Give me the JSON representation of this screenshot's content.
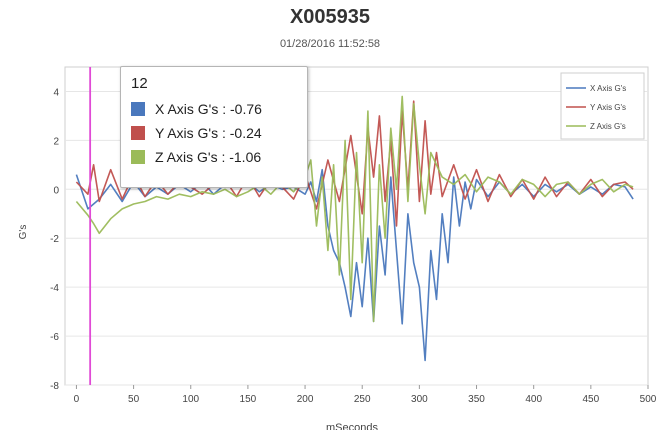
{
  "chart_data": {
    "type": "line",
    "title": "X005935",
    "subtitle": "01/28/2016 11:52:58",
    "xlabel": "mSeconds",
    "ylabel": "G's",
    "xlim": [
      -10,
      500
    ],
    "ylim": [
      -8,
      5
    ],
    "x_ticks": [
      0,
      50,
      100,
      150,
      200,
      250,
      300,
      350,
      400,
      450,
      500
    ],
    "y_ticks": [
      -8,
      -6,
      -4,
      -2,
      0,
      2,
      4
    ],
    "grid": true,
    "legend_position": "top-right",
    "series": [
      {
        "name": "X Axis G's",
        "color": "#4a78bd",
        "x": [
          0,
          10,
          20,
          30,
          40,
          50,
          60,
          70,
          80,
          90,
          100,
          110,
          120,
          130,
          140,
          150,
          160,
          170,
          180,
          190,
          200,
          205,
          210,
          215,
          220,
          225,
          230,
          235,
          240,
          245,
          250,
          255,
          260,
          265,
          270,
          275,
          280,
          285,
          290,
          295,
          300,
          305,
          310,
          315,
          320,
          325,
          330,
          335,
          340,
          345,
          350,
          360,
          370,
          380,
          390,
          400,
          410,
          420,
          430,
          440,
          450,
          460,
          470,
          480,
          487
        ],
        "y": [
          0.6,
          -0.8,
          -0.4,
          0.2,
          -0.5,
          0.3,
          -0.3,
          0.1,
          -0.2,
          0.2,
          -0.1,
          0.3,
          -0.2,
          0.2,
          0.1,
          0.3,
          -0.1,
          0.2,
          0.0,
          0.1,
          -0.2,
          0.3,
          -0.5,
          0.8,
          -1.5,
          -2.5,
          -3.0,
          -4.0,
          -5.2,
          -3.0,
          -4.8,
          -2.0,
          -5.4,
          -1.5,
          -3.5,
          0.5,
          -2.5,
          -5.5,
          -1.0,
          -3.0,
          -4.0,
          -7.0,
          -2.5,
          -4.5,
          -1.0,
          -3.0,
          0.5,
          -1.5,
          0.3,
          -0.8,
          0.4,
          -0.3,
          0.3,
          -0.2,
          0.2,
          -0.3,
          0.2,
          -0.1,
          0.2,
          -0.2,
          0.1,
          -0.2,
          0.2,
          0.1,
          -0.4
        ]
      },
      {
        "name": "Y Axis G's",
        "color": "#c0504d",
        "x": [
          0,
          10,
          15,
          20,
          30,
          40,
          50,
          60,
          70,
          80,
          90,
          100,
          110,
          120,
          130,
          140,
          150,
          160,
          170,
          180,
          190,
          200,
          210,
          220,
          230,
          240,
          250,
          255,
          260,
          265,
          270,
          275,
          280,
          285,
          290,
          295,
          300,
          305,
          310,
          315,
          320,
          330,
          340,
          350,
          360,
          370,
          380,
          390,
          400,
          410,
          420,
          430,
          440,
          450,
          460,
          470,
          480,
          487
        ],
        "y": [
          0.3,
          -0.2,
          1.0,
          -0.5,
          0.8,
          -0.4,
          0.6,
          -0.3,
          0.4,
          -0.2,
          0.3,
          0.1,
          -0.2,
          0.2,
          0.4,
          -0.3,
          0.5,
          -0.3,
          0.4,
          0.1,
          -0.4,
          0.6,
          -0.8,
          1.2,
          -0.5,
          2.2,
          -1.0,
          2.5,
          0.5,
          3.0,
          -0.5,
          2.0,
          -1.5,
          3.2,
          0.0,
          3.6,
          -0.5,
          2.8,
          -0.2,
          1.5,
          -0.3,
          1.0,
          -0.4,
          0.8,
          -0.5,
          0.6,
          -0.3,
          0.4,
          -0.4,
          0.5,
          -0.3,
          0.3,
          -0.2,
          0.4,
          -0.3,
          0.2,
          0.3,
          0.0
        ]
      },
      {
        "name": "Z Axis G's",
        "color": "#9bbb59",
        "x": [
          0,
          10,
          15,
          20,
          30,
          40,
          50,
          60,
          70,
          80,
          90,
          100,
          110,
          120,
          130,
          140,
          150,
          160,
          170,
          180,
          190,
          200,
          205,
          210,
          215,
          220,
          225,
          230,
          235,
          240,
          245,
          250,
          255,
          260,
          265,
          270,
          275,
          280,
          285,
          290,
          295,
          300,
          305,
          310,
          320,
          330,
          340,
          350,
          360,
          370,
          380,
          390,
          400,
          410,
          420,
          430,
          440,
          450,
          460,
          470,
          480,
          487
        ],
        "y": [
          -0.5,
          -1.06,
          -1.4,
          -1.8,
          -1.2,
          -0.8,
          -0.6,
          -0.5,
          -0.3,
          -0.4,
          -0.2,
          -0.3,
          -0.1,
          -0.2,
          0.0,
          -0.3,
          -0.1,
          0.2,
          -0.2,
          0.3,
          -0.1,
          0.5,
          1.2,
          -1.5,
          0.5,
          -2.5,
          1.0,
          -3.5,
          2.0,
          -4.5,
          1.5,
          -3.0,
          3.2,
          -5.4,
          1.0,
          -2.0,
          2.5,
          0.0,
          3.8,
          -0.5,
          3.5,
          1.0,
          -1.0,
          1.5,
          0.5,
          0.2,
          0.6,
          -0.1,
          0.5,
          0.3,
          -0.2,
          0.4,
          0.2,
          -0.3,
          0.2,
          0.3,
          -0.2,
          0.2,
          0.4,
          -0.1,
          0.2,
          0.1
        ]
      }
    ],
    "cursor_x": 12
  },
  "tooltip": {
    "title": "12",
    "rows": [
      {
        "label": "X Axis G's : -0.76",
        "color": "#4a78bd"
      },
      {
        "label": "Y Axis G's : -0.24",
        "color": "#c0504d"
      },
      {
        "label": "Z Axis G's : -1.06",
        "color": "#9bbb59"
      }
    ]
  }
}
